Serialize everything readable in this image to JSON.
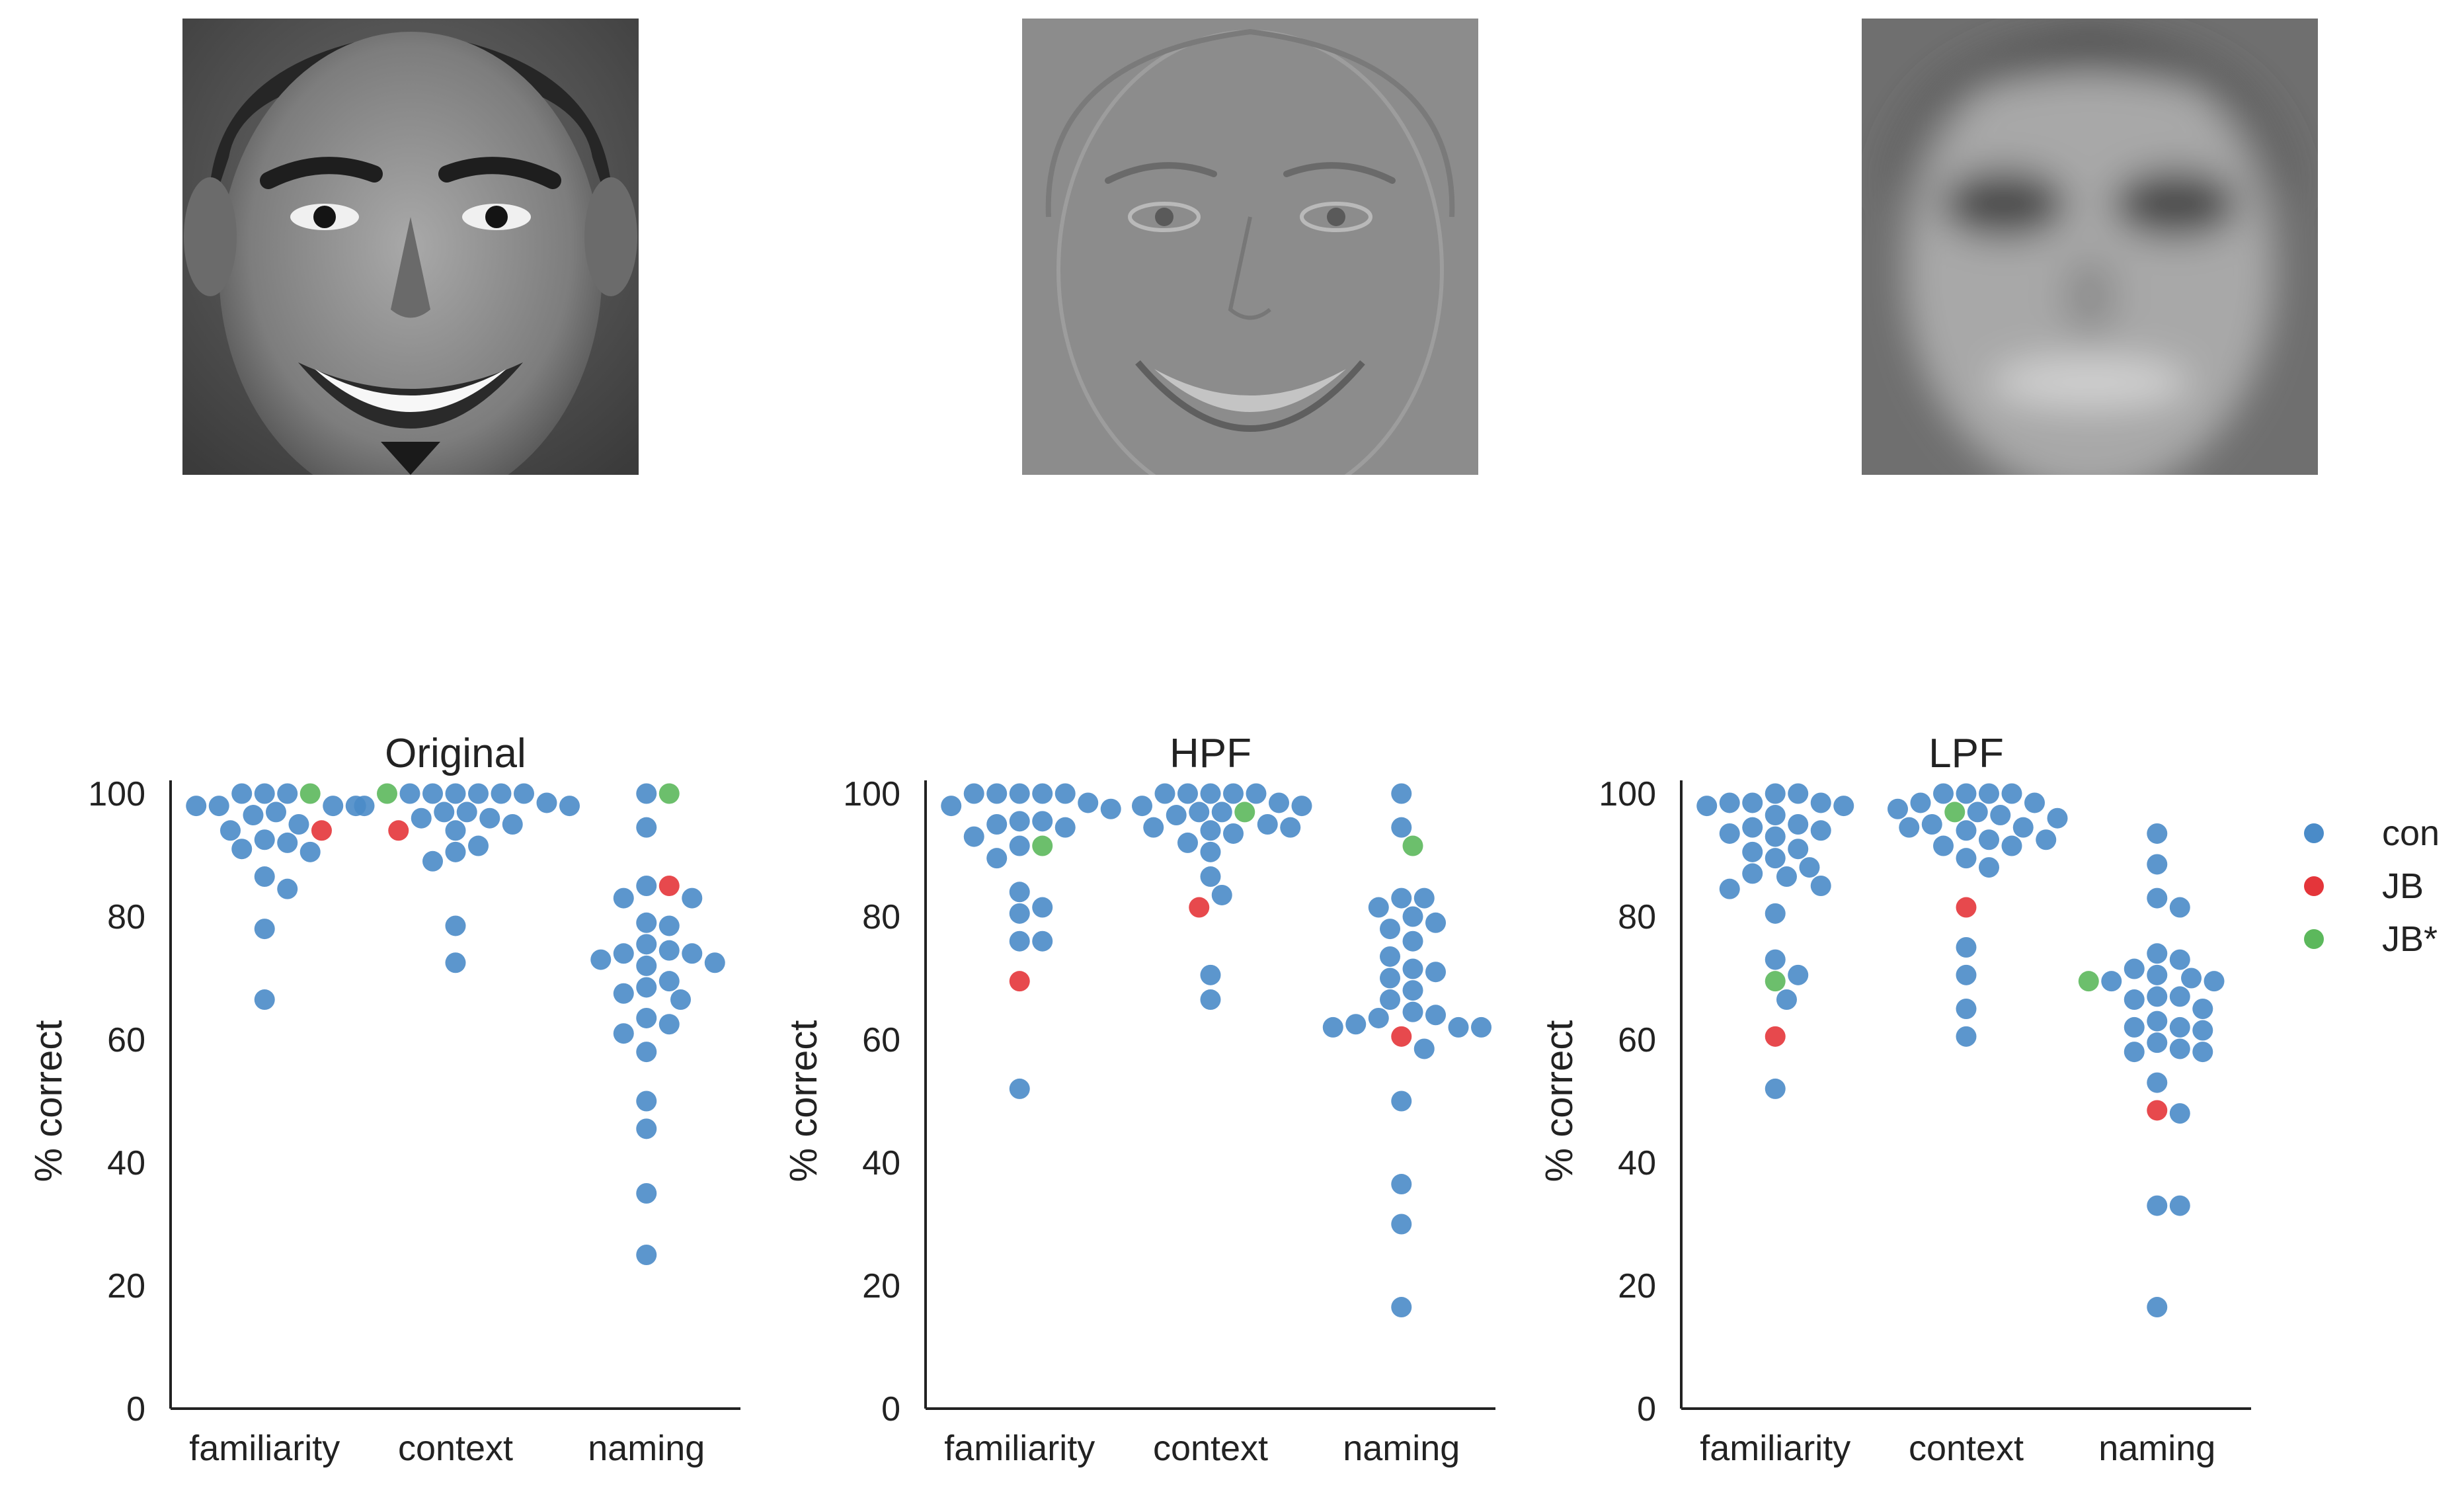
{
  "images": [
    {
      "name": "original-face-image",
      "kind": "original"
    },
    {
      "name": "hpf-face-image",
      "kind": "highpass"
    },
    {
      "name": "lpf-face-image",
      "kind": "lowpass"
    }
  ],
  "colors": {
    "con": "#4a8bc8",
    "JB": "#e4353a",
    "JB*": "#5cb85c",
    "axis": "#222222"
  },
  "legend": [
    {
      "key": "con",
      "label": "con"
    },
    {
      "key": "JB",
      "label": "JB"
    },
    {
      "key": "JB*",
      "label": "JB*"
    }
  ],
  "chart_data": [
    {
      "type": "scatter",
      "title": "Original",
      "ylabel": "% correct",
      "ylim": [
        0,
        100
      ],
      "yticks": [
        0,
        20,
        40,
        60,
        80,
        100
      ],
      "categories": [
        "familiarity",
        "context",
        "naming"
      ],
      "series": [
        {
          "name": "con",
          "points": {
            "familiarity": [
              98,
              95,
              98,
              94,
              91,
              98,
              86.5,
              96.5,
              90.5,
              84.5,
              78,
              66.5,
              100,
              92,
              97,
              92.5,
              98,
              100,
              100
            ],
            "context": [
              97,
              98.5,
              100,
              96,
              100,
              95,
              90.5,
              100,
              98,
              89,
              91.5,
              78.5,
              72.5,
              100,
              94,
              98,
              96,
              100,
              97,
              100
            ],
            "naming": [
              100,
              94.5,
              85,
              83,
              74,
              83,
              68.5,
              73,
              78.5,
              75.5,
              72,
              62.5,
              66.5,
              69.5,
              79,
              72.5,
              67.5,
              61,
              63.5,
              58,
              50,
              45.5,
              35,
              25,
              74,
              74.5
            ]
          }
        },
        {
          "name": "JB",
          "points": {
            "familiarity": [
              94
            ],
            "context": [
              94
            ],
            "naming": [
              85
            ]
          }
        },
        {
          "name": "JB*",
          "points": {
            "familiarity": [
              100
            ],
            "context": [
              100
            ],
            "naming": [
              100
            ]
          }
        }
      ]
    },
    {
      "type": "scatter",
      "title": "HPF",
      "ylabel": "% correct",
      "ylim": [
        0,
        100
      ],
      "yticks": [
        0,
        20,
        40,
        60,
        80,
        100
      ],
      "categories": [
        "familiarity",
        "context",
        "naming"
      ],
      "series": [
        {
          "name": "con",
          "points": {
            "familiarity": [
              100,
              100,
              98.5,
              95.5,
              91.5,
              95,
              98,
              94.5,
              89.5,
              84,
              80.5,
              81.5,
              76,
              76,
              52,
              100,
              95.5,
              97.5,
              93,
              100,
              100
            ],
            "context": [
              100,
              100,
              96.5,
              94.5,
              98.5,
              94.5,
              97,
              93.5,
              83.5,
              90.5,
              86.5,
              95,
              100,
              92,
              97,
              98,
              94,
              100,
              98,
              100,
              70.5,
              66.5
            ],
            "naming": [
              100,
              94.5,
              83,
              78,
              81.5,
              71.5,
              70,
              73.5,
              76,
              80,
              64.5,
              62,
              68,
              66.5,
              62,
              63.5,
              64,
              58.5,
              62,
              83,
              79,
              71,
              62.5,
              50,
              36.5,
              30,
              16.5
            ]
          }
        },
        {
          "name": "JB",
          "points": {
            "familiarity": [
              69.5
            ],
            "context": [
              81.5
            ],
            "naming": [
              60.5
            ]
          }
        },
        {
          "name": "JB*",
          "points": {
            "familiarity": [
              91.5
            ],
            "context": [
              97
            ],
            "naming": [
              91.5
            ]
          }
        }
      ]
    },
    {
      "type": "scatter",
      "title": "LPF",
      "ylabel": "% correct",
      "ylim": [
        0,
        100
      ],
      "yticks": [
        0,
        20,
        40,
        60,
        80,
        100
      ],
      "categories": [
        "familiarity",
        "context",
        "naming"
      ],
      "series": [
        {
          "name": "con",
          "points": {
            "familiarity": [
              100,
              98.5,
              95,
              98,
              93.5,
              89.5,
              85,
              96.5,
              93,
              88,
              84.5,
              80.5,
              98,
              94.5,
              90.5,
              86.5,
              98.5,
              94,
              91,
              87,
              98.5,
              100,
              73,
              70.5,
              66.5,
              52
            ],
            "context": [
              98.5,
              94.5,
              98.5,
              94.5,
              97.5,
              92.5,
              89.5,
              97,
              91.5,
              88,
              100,
              96,
              91.5,
              100,
              96.5,
              92.5,
              100,
              95,
              94,
              75,
              70.5,
              65,
              60.5,
              100
            ],
            "naming": [
              70.5,
              69.5,
              67,
              62,
              58.5,
              74,
              70,
              66.5,
              62,
              58,
              73,
              69.5,
              65,
              61.5,
              58,
              71.5,
              67,
              63,
              59.5,
              93.5,
              88.5,
              83,
              81.5,
              53,
              48,
              33,
              33,
              16.5
            ]
          }
        },
        {
          "name": "JB",
          "points": {
            "familiarity": [
              60.5
            ],
            "context": [
              81.5
            ],
            "naming": [
              48.5
            ]
          }
        },
        {
          "name": "JB*",
          "points": {
            "familiarity": [
              69.5
            ],
            "context": [
              97
            ],
            "naming": [
              69.5
            ]
          }
        }
      ]
    }
  ]
}
